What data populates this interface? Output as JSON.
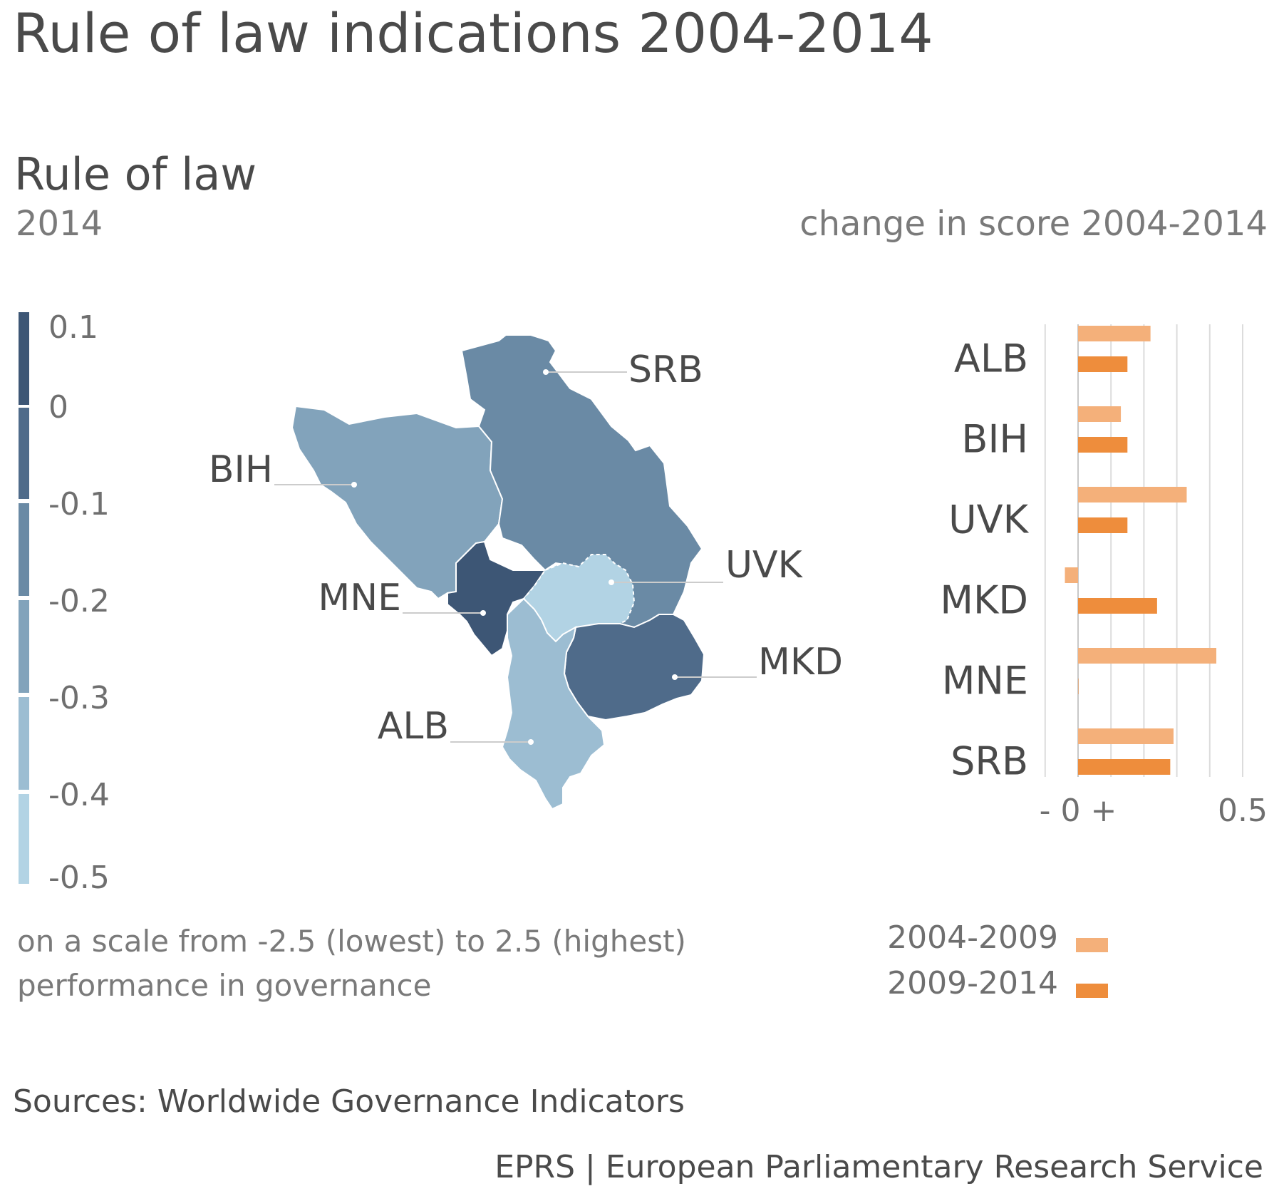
{
  "title": "Rule of law indications 2004-2014",
  "subtitle": "Rule of law",
  "map_year": "2014",
  "change_title": "change in score 2004-2014",
  "scale_note": [
    "on a scale from -2.5 (lowest) to 2.5 (highest)",
    "performance in governance"
  ],
  "sources": "Sources: Worldwide Governance Indicators",
  "credit": "EPRS | European Parliamentary Research Service",
  "colors": {
    "period_2004_2009": "#f4b07a",
    "period_2009_2014": "#ee8d3c",
    "scale": [
      "#3d5675",
      "#4f6b8a",
      "#6a8aa5",
      "#82a3bb",
      "#9cbdd2",
      "#b2d3e4"
    ]
  },
  "map": {
    "color_scale_labels": [
      "0.1",
      "0",
      "-0.1",
      "-0.2",
      "-0.3",
      "-0.4",
      "-0.5"
    ],
    "regions": [
      {
        "code": "SRB",
        "color": "#6a8aa5"
      },
      {
        "code": "BIH",
        "color": "#82a3bb"
      },
      {
        "code": "MNE",
        "color": "#3d5675"
      },
      {
        "code": "UVK",
        "color": "#b2d3e4"
      },
      {
        "code": "MKD",
        "color": "#4f6b8a"
      },
      {
        "code": "ALB",
        "color": "#9cbdd2"
      }
    ]
  },
  "chart_data": {
    "type": "bar",
    "orientation": "horizontal",
    "categories": [
      "ALB",
      "BIH",
      "UVK",
      "MKD",
      "MNE",
      "SRB"
    ],
    "series": [
      {
        "name": "2004-2009",
        "values": [
          0.22,
          0.13,
          0.33,
          -0.04,
          0.42,
          0.29
        ]
      },
      {
        "name": "2009-2014",
        "values": [
          0.15,
          0.15,
          0.15,
          0.24,
          0.0,
          0.28
        ]
      }
    ],
    "x_tick_labels": [
      "- 0 +",
      "0.5"
    ],
    "xlim": [
      -0.1,
      0.5
    ],
    "grid": true
  }
}
